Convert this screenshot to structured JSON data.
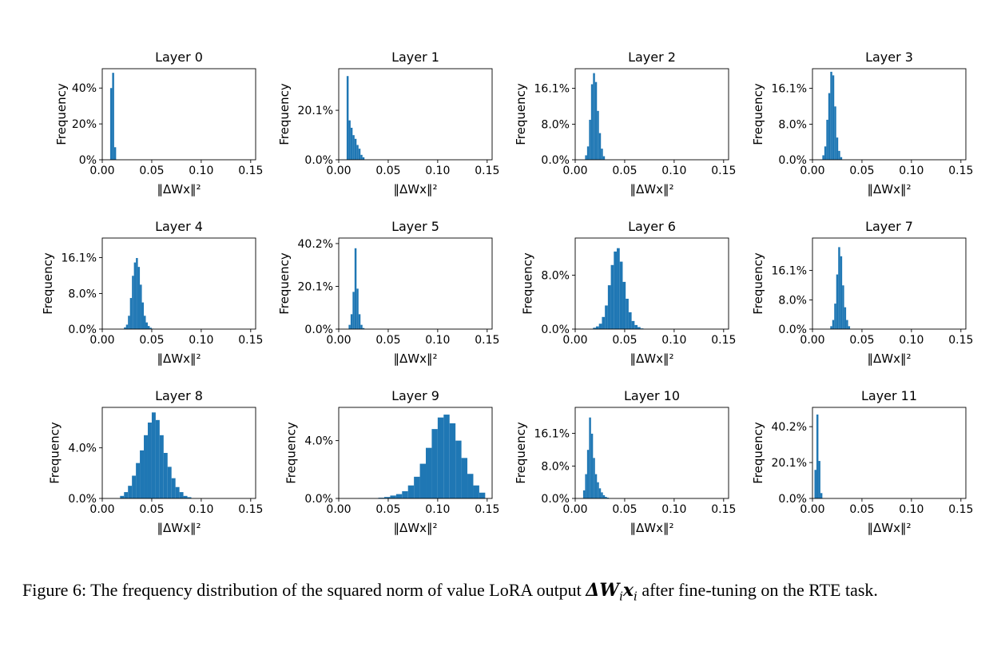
{
  "figure": {
    "caption_prefix": "Figure 6: The frequency distribution of the squared norm of value LoRA output",
    "caption_math": "ΔW",
    "caption_math_sub1": "i",
    "caption_math2": "x",
    "caption_math_sub2": "i",
    "caption_suffix": "after fine-tuning on the RTE task.",
    "bar_color": "#1f77b4"
  },
  "chart_data": [
    {
      "type": "bar",
      "title": "Layer 0",
      "xlabel": "‖ΔWx‖²",
      "ylabel": "Frequency",
      "xlim": [
        0,
        0.155
      ],
      "ylim": [
        0,
        0.508
      ],
      "xticks": [
        0,
        0.05,
        0.1,
        0.15
      ],
      "xtick_labels": [
        "0.00",
        "0.05",
        "0.10",
        "0.15"
      ],
      "yticks": [
        0,
        0.2,
        0.4
      ],
      "ytick_labels": [
        "0%",
        "20%",
        "40%"
      ],
      "bin_edges": [
        0.008,
        0.01,
        0.012,
        0.014
      ],
      "values": [
        0.4,
        0.485,
        0.07
      ]
    },
    {
      "type": "bar",
      "title": "Layer 1",
      "xlabel": "‖ΔWx‖²",
      "ylabel": "Frequency",
      "xlim": [
        0,
        0.155
      ],
      "ylim": [
        0,
        0.37
      ],
      "xticks": [
        0,
        0.05,
        0.1,
        0.15
      ],
      "xtick_labels": [
        "0.00",
        "0.05",
        "0.10",
        "0.15"
      ],
      "yticks": [
        0,
        0.201
      ],
      "ytick_labels": [
        "0.0%",
        "20.1%"
      ],
      "bin_edges": [
        0.008,
        0.01,
        0.012,
        0.014,
        0.016,
        0.018,
        0.02,
        0.022,
        0.024,
        0.026
      ],
      "values": [
        0.34,
        0.16,
        0.13,
        0.1,
        0.085,
        0.06,
        0.045,
        0.02,
        0.01
      ]
    },
    {
      "type": "bar",
      "title": "Layer 2",
      "xlabel": "‖ΔWx‖²",
      "ylabel": "Frequency",
      "xlim": [
        0,
        0.155
      ],
      "ylim": [
        0,
        0.205
      ],
      "xticks": [
        0,
        0.05,
        0.1,
        0.15
      ],
      "xtick_labels": [
        "0.00",
        "0.05",
        "0.10",
        "0.15"
      ],
      "yticks": [
        0,
        0.08,
        0.161
      ],
      "ytick_labels": [
        "0.0%",
        "8.0%",
        "16.1%"
      ],
      "bin_edges": [
        0.01,
        0.012,
        0.014,
        0.016,
        0.018,
        0.02,
        0.022,
        0.024,
        0.026,
        0.028,
        0.03
      ],
      "values": [
        0.01,
        0.03,
        0.09,
        0.17,
        0.195,
        0.175,
        0.11,
        0.06,
        0.025,
        0.008
      ]
    },
    {
      "type": "bar",
      "title": "Layer 3",
      "xlabel": "‖ΔWx‖²",
      "ylabel": "Frequency",
      "xlim": [
        0,
        0.155
      ],
      "ylim": [
        0,
        0.205
      ],
      "xticks": [
        0,
        0.05,
        0.1,
        0.15
      ],
      "xtick_labels": [
        "0.00",
        "0.05",
        "0.10",
        "0.15"
      ],
      "yticks": [
        0,
        0.08,
        0.161
      ],
      "ytick_labels": [
        "0.0%",
        "8.0%",
        "16.1%"
      ],
      "bin_edges": [
        0.01,
        0.012,
        0.014,
        0.016,
        0.018,
        0.02,
        0.022,
        0.024,
        0.026,
        0.028,
        0.03
      ],
      "values": [
        0.01,
        0.03,
        0.09,
        0.15,
        0.198,
        0.19,
        0.12,
        0.05,
        0.02,
        0.006
      ]
    },
    {
      "type": "bar",
      "title": "Layer 4",
      "xlabel": "‖ΔWx‖²",
      "ylabel": "Frequency",
      "xlim": [
        0,
        0.155
      ],
      "ylim": [
        0,
        0.205
      ],
      "xticks": [
        0,
        0.05,
        0.1,
        0.15
      ],
      "xtick_labels": [
        "0.00",
        "0.05",
        "0.10",
        "0.15"
      ],
      "yticks": [
        0,
        0.08,
        0.161
      ],
      "ytick_labels": [
        "0.0%",
        "8.0%",
        "16.1%"
      ],
      "bin_edges": [
        0.022,
        0.024,
        0.026,
        0.028,
        0.03,
        0.032,
        0.034,
        0.036,
        0.038,
        0.04,
        0.042,
        0.044,
        0.046,
        0.048,
        0.05,
        0.052
      ],
      "values": [
        0.004,
        0.01,
        0.03,
        0.07,
        0.12,
        0.15,
        0.16,
        0.14,
        0.1,
        0.06,
        0.03,
        0.015,
        0.007,
        0.003,
        0.001
      ]
    },
    {
      "type": "bar",
      "title": "Layer 5",
      "xlabel": "‖ΔWx‖²",
      "ylabel": "Frequency",
      "xlim": [
        0,
        0.155
      ],
      "ylim": [
        0,
        0.428
      ],
      "xticks": [
        0,
        0.05,
        0.1,
        0.15
      ],
      "xtick_labels": [
        "0.00",
        "0.05",
        "0.10",
        "0.15"
      ],
      "yticks": [
        0,
        0.201,
        0.402
      ],
      "ytick_labels": [
        "0.0%",
        "20.1%",
        "40.2%"
      ],
      "bin_edges": [
        0.01,
        0.012,
        0.014,
        0.016,
        0.018,
        0.02,
        0.022,
        0.024,
        0.026
      ],
      "values": [
        0.02,
        0.07,
        0.175,
        0.38,
        0.19,
        0.07,
        0.02,
        0.005
      ]
    },
    {
      "type": "bar",
      "title": "Layer 6",
      "xlabel": "‖ΔWx‖²",
      "ylabel": "Frequency",
      "xlim": [
        0,
        0.155
      ],
      "ylim": [
        0,
        0.135
      ],
      "xticks": [
        0,
        0.05,
        0.1,
        0.15
      ],
      "xtick_labels": [
        "0.00",
        "0.05",
        "0.10",
        "0.15"
      ],
      "yticks": [
        0,
        0.08
      ],
      "ytick_labels": [
        "0.0%",
        "8.0%"
      ],
      "bin_edges": [
        0.018,
        0.021,
        0.024,
        0.027,
        0.03,
        0.033,
        0.036,
        0.039,
        0.042,
        0.045,
        0.048,
        0.051,
        0.054,
        0.057,
        0.06,
        0.063,
        0.066,
        0.069
      ],
      "values": [
        0.002,
        0.004,
        0.008,
        0.018,
        0.035,
        0.065,
        0.095,
        0.115,
        0.12,
        0.1,
        0.07,
        0.045,
        0.025,
        0.012,
        0.006,
        0.003,
        0.001
      ]
    },
    {
      "type": "bar",
      "title": "Layer 7",
      "xlabel": "‖ΔWx‖²",
      "ylabel": "Frequency",
      "xlim": [
        0,
        0.155
      ],
      "ylim": [
        0,
        0.25
      ],
      "xticks": [
        0,
        0.05,
        0.1,
        0.15
      ],
      "xtick_labels": [
        "0.00",
        "0.05",
        "0.10",
        "0.15"
      ],
      "yticks": [
        0,
        0.08,
        0.161
      ],
      "ytick_labels": [
        "0.0%",
        "8.0%",
        "16.1%"
      ],
      "bin_edges": [
        0.018,
        0.02,
        0.022,
        0.024,
        0.026,
        0.028,
        0.03,
        0.032,
        0.034,
        0.036,
        0.038
      ],
      "values": [
        0.008,
        0.025,
        0.07,
        0.15,
        0.225,
        0.2,
        0.12,
        0.06,
        0.025,
        0.008
      ]
    },
    {
      "type": "bar",
      "title": "Layer 8",
      "xlabel": "‖ΔWx‖²",
      "ylabel": "Frequency",
      "xlim": [
        0,
        0.155
      ],
      "ylim": [
        0,
        0.072
      ],
      "xticks": [
        0,
        0.05,
        0.1,
        0.15
      ],
      "xtick_labels": [
        "0.00",
        "0.05",
        "0.10",
        "0.15"
      ],
      "yticks": [
        0,
        0.04
      ],
      "ytick_labels": [
        "0.0%",
        "4.0%"
      ],
      "bin_edges": [
        0.018,
        0.022,
        0.026,
        0.03,
        0.034,
        0.038,
        0.042,
        0.046,
        0.05,
        0.054,
        0.058,
        0.062,
        0.066,
        0.07,
        0.074,
        0.078,
        0.082,
        0.086,
        0.09
      ],
      "values": [
        0.002,
        0.005,
        0.01,
        0.018,
        0.028,
        0.038,
        0.05,
        0.06,
        0.068,
        0.062,
        0.05,
        0.036,
        0.025,
        0.016,
        0.009,
        0.005,
        0.002,
        0.001
      ]
    },
    {
      "type": "bar",
      "title": "Layer 9",
      "xlabel": "‖ΔWx‖²",
      "ylabel": "Frequency",
      "xlim": [
        0,
        0.155
      ],
      "ylim": [
        0,
        0.063
      ],
      "xticks": [
        0,
        0.05,
        0.1,
        0.15
      ],
      "xtick_labels": [
        "0.00",
        "0.05",
        "0.10",
        "0.15"
      ],
      "yticks": [
        0,
        0.04
      ],
      "ytick_labels": [
        "0.0%",
        "4.0%"
      ],
      "bin_edges": [
        0.04,
        0.046,
        0.052,
        0.058,
        0.064,
        0.07,
        0.076,
        0.082,
        0.088,
        0.094,
        0.1,
        0.106,
        0.112,
        0.118,
        0.124,
        0.13,
        0.136,
        0.142,
        0.148
      ],
      "values": [
        0.0005,
        0.001,
        0.002,
        0.003,
        0.005,
        0.009,
        0.015,
        0.024,
        0.035,
        0.048,
        0.056,
        0.058,
        0.052,
        0.04,
        0.028,
        0.017,
        0.009,
        0.004
      ]
    },
    {
      "type": "bar",
      "title": "Layer 10",
      "xlabel": "‖ΔWx‖²",
      "ylabel": "Frequency",
      "xlim": [
        0,
        0.155
      ],
      "ylim": [
        0,
        0.225
      ],
      "xticks": [
        0,
        0.05,
        0.1,
        0.15
      ],
      "xtick_labels": [
        "0.00",
        "0.05",
        "0.10",
        "0.15"
      ],
      "yticks": [
        0,
        0.08,
        0.161
      ],
      "ytick_labels": [
        "0.0%",
        "8.0%",
        "16.1%"
      ],
      "bin_edges": [
        0.008,
        0.01,
        0.012,
        0.014,
        0.016,
        0.018,
        0.02,
        0.022,
        0.024,
        0.026,
        0.028,
        0.03,
        0.032,
        0.034
      ],
      "values": [
        0.02,
        0.06,
        0.12,
        0.2,
        0.16,
        0.1,
        0.06,
        0.04,
        0.025,
        0.015,
        0.008,
        0.004,
        0.002
      ]
    },
    {
      "type": "bar",
      "title": "Layer 11",
      "xlabel": "‖ΔWx‖²",
      "ylabel": "Frequency",
      "xlim": [
        0,
        0.155
      ],
      "ylim": [
        0,
        0.51
      ],
      "xticks": [
        0,
        0.05,
        0.1,
        0.15
      ],
      "xtick_labels": [
        "0.00",
        "0.05",
        "0.10",
        "0.15"
      ],
      "yticks": [
        0,
        0.201,
        0.402
      ],
      "ytick_labels": [
        "0.0%",
        "20.1%",
        "40.2%"
      ],
      "bin_edges": [
        0.002,
        0.004,
        0.006,
        0.008,
        0.01
      ],
      "values": [
        0.16,
        0.47,
        0.21,
        0.03
      ]
    }
  ]
}
